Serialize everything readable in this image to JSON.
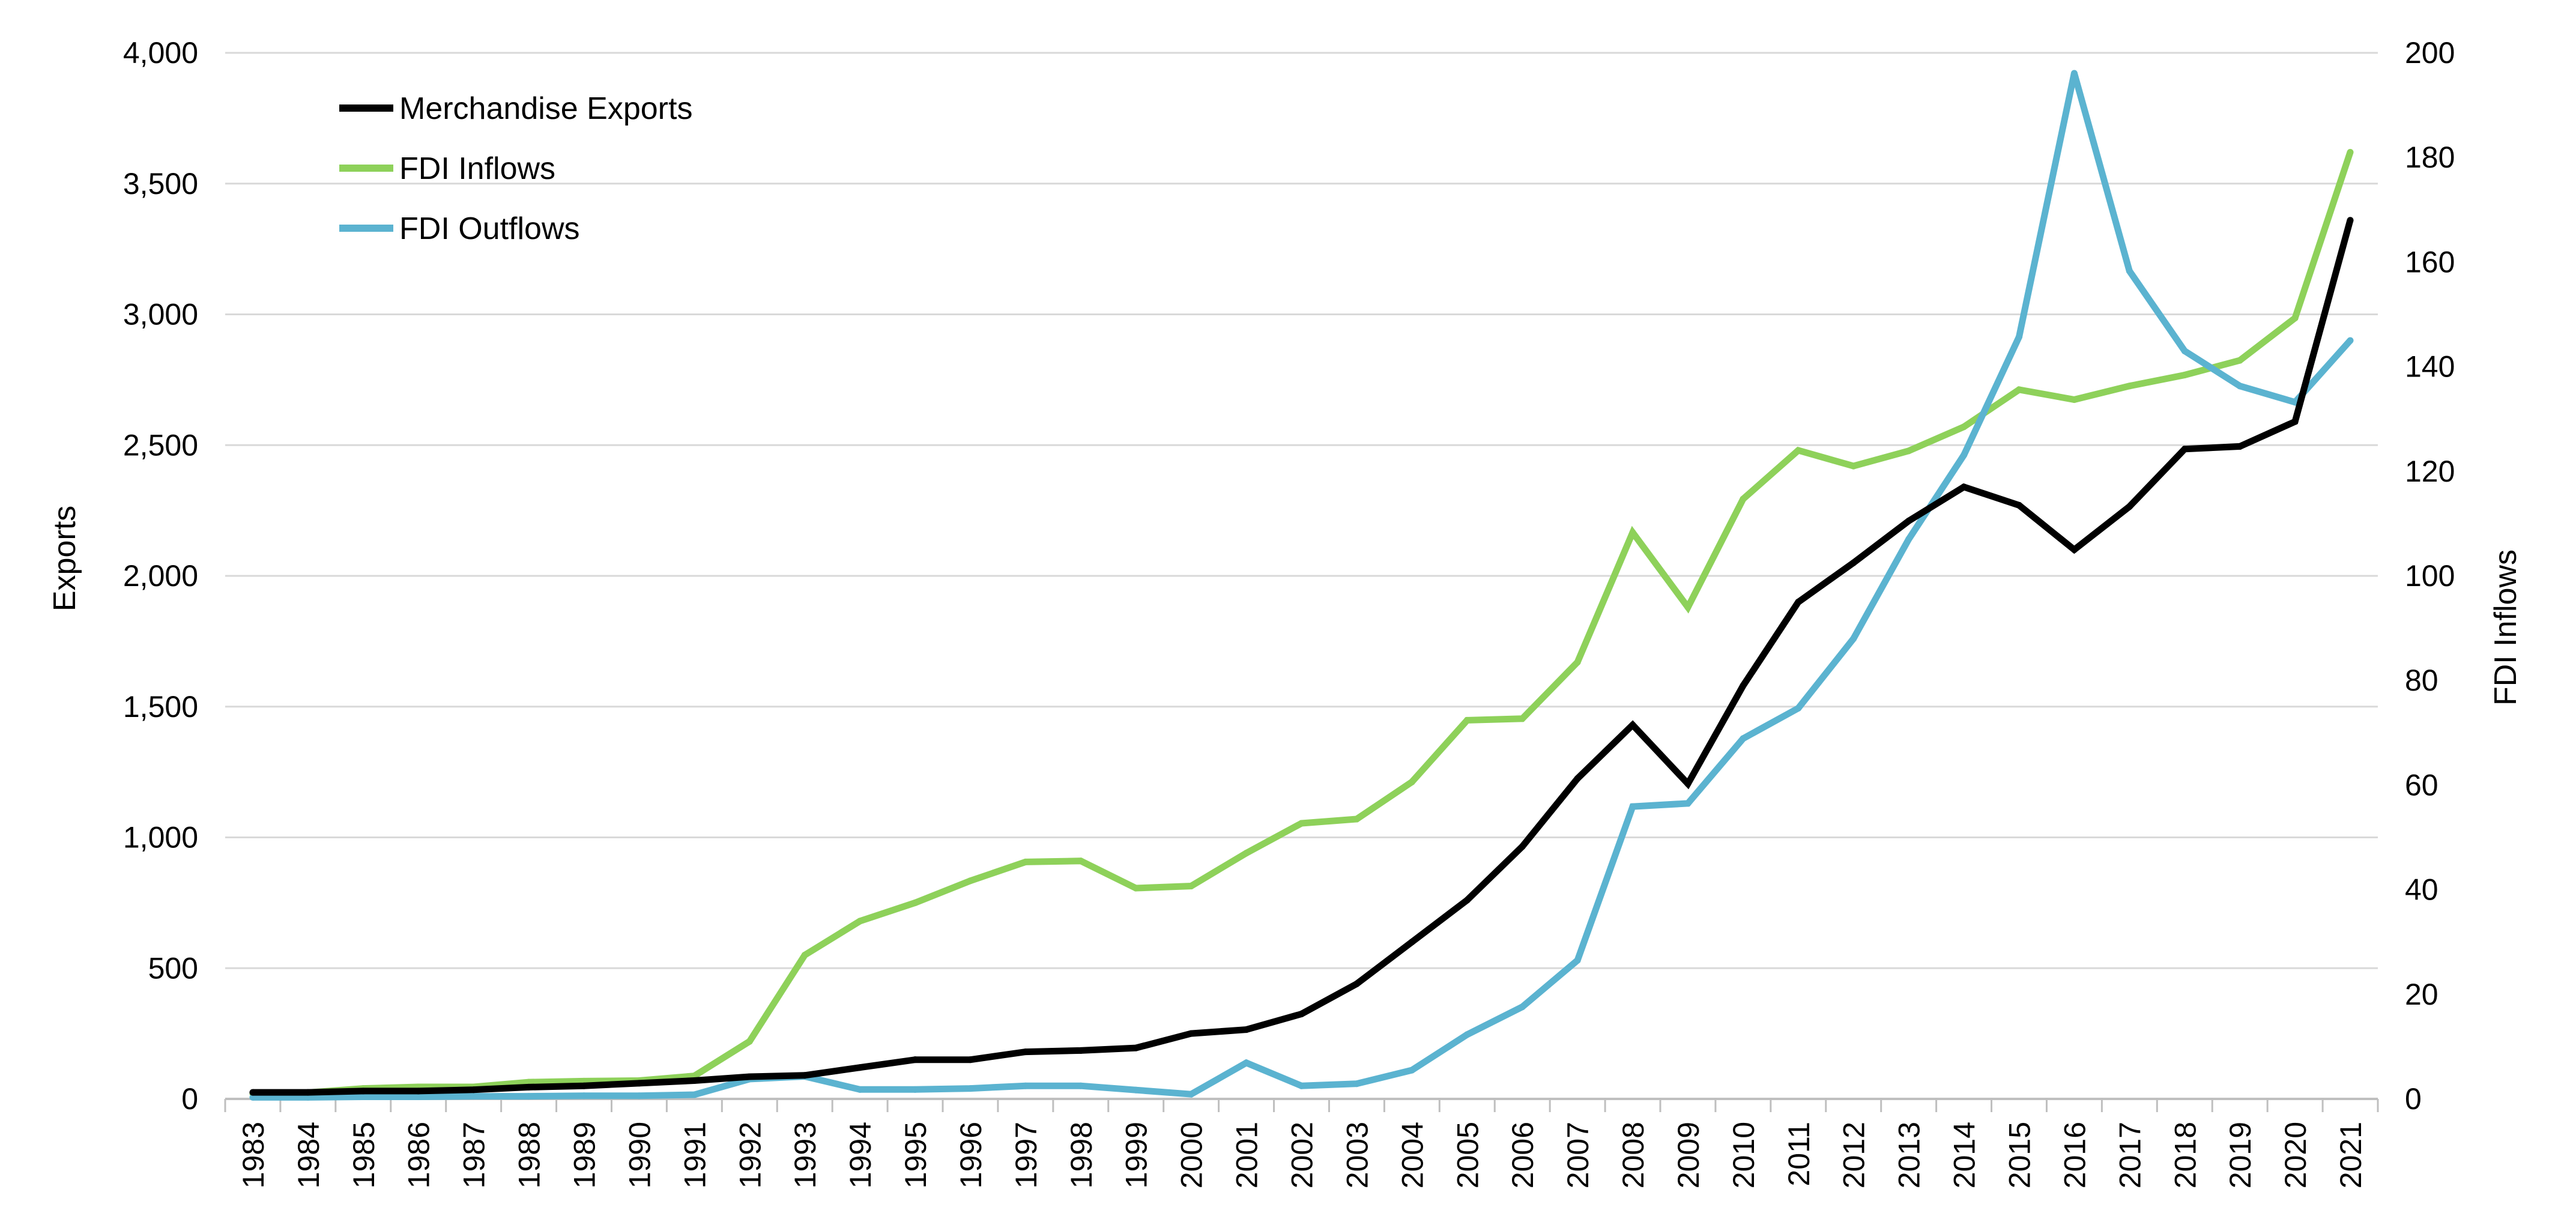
{
  "chart_data": {
    "type": "line",
    "x": [
      "1983",
      "1984",
      "1985",
      "1986",
      "1987",
      "1988",
      "1989",
      "1990",
      "1991",
      "1992",
      "1993",
      "1994",
      "1995",
      "1996",
      "1997",
      "1998",
      "1999",
      "2000",
      "2001",
      "2002",
      "2003",
      "2004",
      "2005",
      "2006",
      "2007",
      "2008",
      "2009",
      "2010",
      "2011",
      "2012",
      "2013",
      "2014",
      "2015",
      "2016",
      "2017",
      "2018",
      "2019",
      "2020",
      "2021"
    ],
    "ylabel": "Exports",
    "y2label": "FDI Inflows",
    "ylim": [
      0,
      4000
    ],
    "y2lim": [
      0,
      200
    ],
    "yticks": [
      "0",
      "500",
      "1,000",
      "1,500",
      "2,000",
      "2,500",
      "3,000",
      "3,500",
      "4,000"
    ],
    "y2ticks": [
      "0",
      "20",
      "40",
      "60",
      "80",
      "100",
      "120",
      "140",
      "160",
      "180",
      "200"
    ],
    "grid": "horizontal",
    "legend_position": "top-left",
    "series": [
      {
        "name": "Merchandise Exports",
        "axis": "left",
        "color": "#000000",
        "values": [
          25,
          25,
          30,
          30,
          35,
          45,
          50,
          60,
          70,
          85,
          90,
          120,
          150,
          150,
          180,
          185,
          195,
          250,
          265,
          325,
          440,
          600,
          760,
          965,
          1225,
          1430,
          1205,
          1580,
          1900,
          2050,
          2210,
          2340,
          2270,
          2100,
          2265,
          2485,
          2495,
          2590,
          3360
        ]
      },
      {
        "name": "FDI Inflows",
        "axis": "right",
        "color": "#8ed15a",
        "values": [
          1.0,
          1.2,
          2.0,
          2.3,
          2.3,
          3.2,
          3.4,
          3.5,
          4.4,
          11.0,
          27.5,
          34.0,
          37.5,
          41.7,
          45.3,
          45.5,
          40.3,
          40.7,
          47.0,
          52.7,
          53.5,
          60.6,
          72.4,
          72.7,
          83.5,
          108.3,
          94.0,
          114.7,
          124.0,
          121.0,
          123.9,
          128.5,
          135.6,
          133.7,
          136.3,
          138.4,
          141.2,
          149.3,
          181.0
        ]
      },
      {
        "name": "FDI Outflows",
        "axis": "right",
        "color": "#5bb3d0",
        "values": [
          0.3,
          0.3,
          0.4,
          0.4,
          0.5,
          0.5,
          0.6,
          0.6,
          0.8,
          3.8,
          4.3,
          1.8,
          1.8,
          2.0,
          2.5,
          2.5,
          1.7,
          0.9,
          6.9,
          2.5,
          2.9,
          5.5,
          12.3,
          17.6,
          26.5,
          55.9,
          56.5,
          68.9,
          74.7,
          88.0,
          107.0,
          123.1,
          145.7,
          196.1,
          158.3,
          143.0,
          136.3,
          133.2,
          145.0
        ]
      }
    ]
  }
}
